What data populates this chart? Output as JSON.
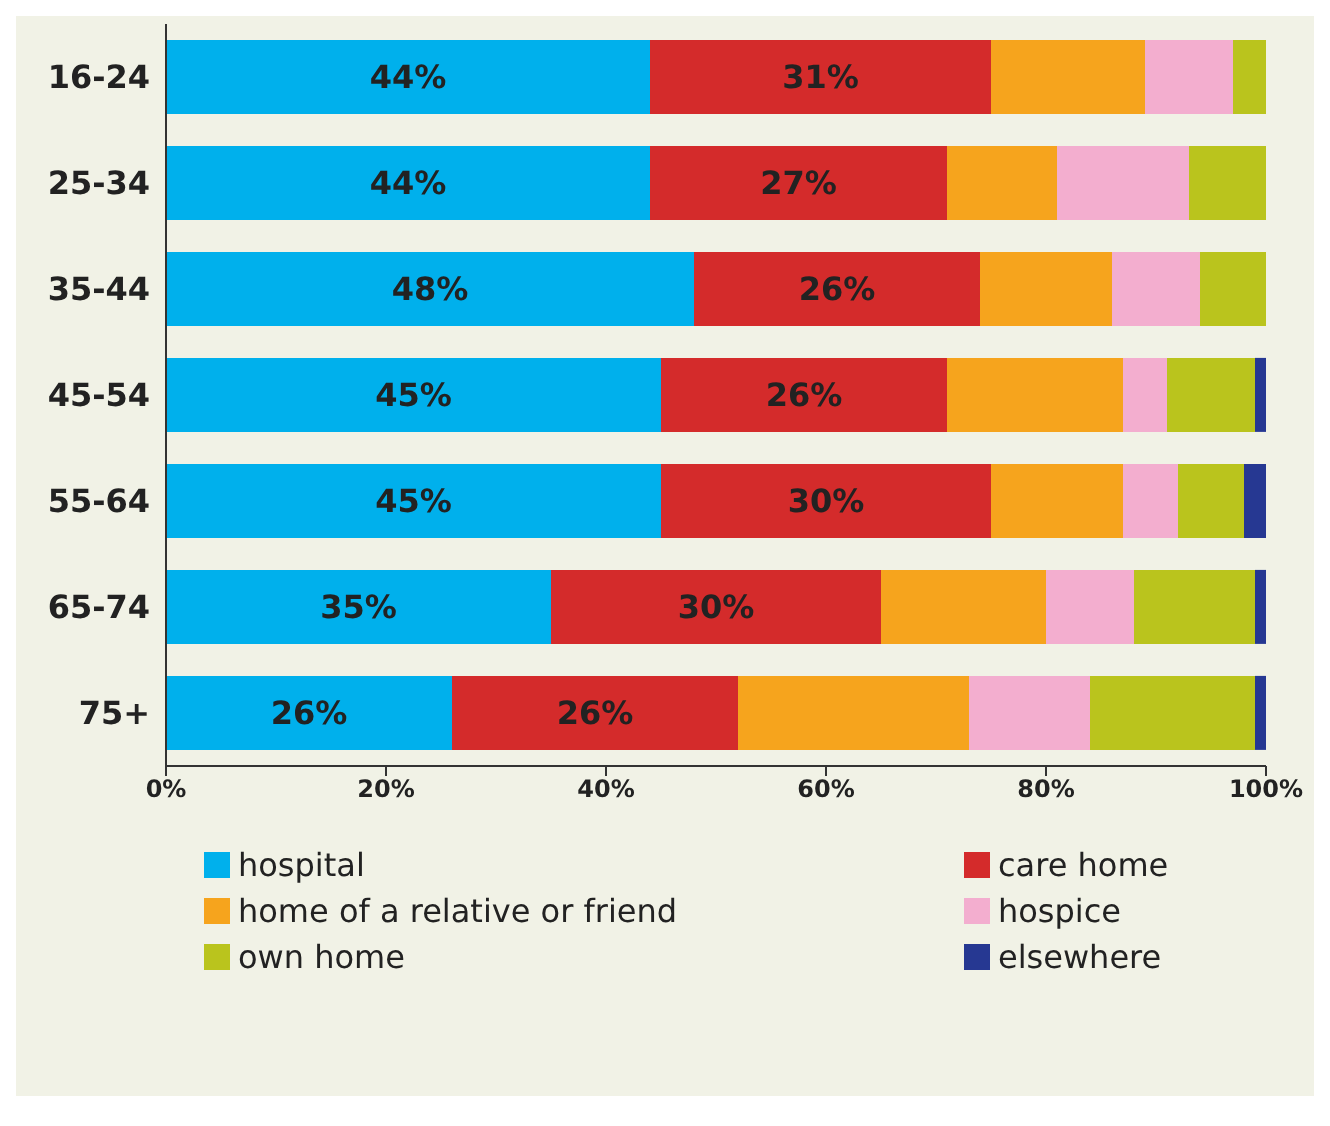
{
  "chart_data": {
    "type": "bar",
    "orientation": "horizontal",
    "stacked": true,
    "categories": [
      "16-24",
      "25-34",
      "35-44",
      "45-54",
      "55-64",
      "65-74",
      "75+"
    ],
    "series": [
      {
        "name": "hospital",
        "color": "#00b0ec",
        "values": [
          44,
          44,
          48,
          45,
          45,
          35,
          26
        ],
        "value_labels": [
          "44%",
          "44%",
          "48%",
          "45%",
          "45%",
          "35%",
          "26%"
        ]
      },
      {
        "name": "care home",
        "color": "#d42b2b",
        "values": [
          31,
          27,
          26,
          26,
          30,
          30,
          26
        ],
        "value_labels": [
          "31%",
          "27%",
          "26%",
          "26%",
          "30%",
          "30%",
          "26%"
        ]
      },
      {
        "name": "home of a relative or friend",
        "color": "#f6a41d",
        "values": [
          14,
          10,
          12,
          16,
          12,
          15,
          21
        ]
      },
      {
        "name": "hospice",
        "color": "#f3aecf",
        "values": [
          8,
          12,
          8,
          4,
          5,
          8,
          11
        ]
      },
      {
        "name": "own home",
        "color": "#bac41d",
        "values": [
          3,
          7,
          6,
          8,
          6,
          11,
          15
        ]
      },
      {
        "name": "elsewhere",
        "color": "#263892",
        "values": [
          0,
          0,
          0,
          1,
          2,
          1,
          1
        ]
      }
    ],
    "xlim": [
      0,
      100
    ],
    "xticks": [
      {
        "value": 0,
        "label": "0%"
      },
      {
        "value": 20,
        "label": "20%"
      },
      {
        "value": 40,
        "label": "40%"
      },
      {
        "value": 60,
        "label": "60%"
      },
      {
        "value": 80,
        "label": "80%"
      },
      {
        "value": 100,
        "label": "100%"
      }
    ],
    "grid": false,
    "legend": "bottom"
  }
}
